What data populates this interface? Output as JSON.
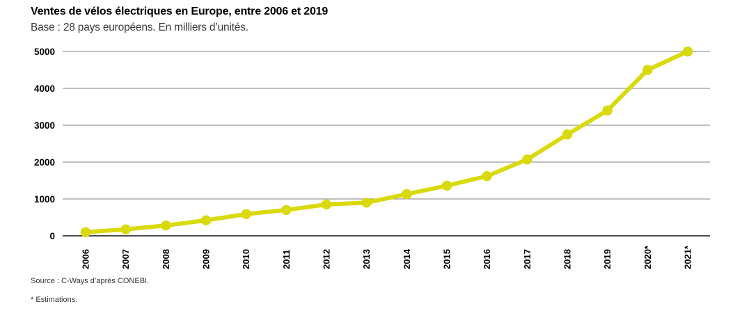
{
  "header": {
    "title": "Ventes de vélos électriques en Europe, entre 2006 et 2019",
    "subtitle": "Base : 28 pays européens. En milliers d’unités."
  },
  "footer": {
    "source": "Source : C-Ways d’après CONEBI.",
    "note": "* Estimations."
  },
  "colors": {
    "line": "#d9d90b",
    "marker": "#d9d90b",
    "grid": "#7f7f7f",
    "zero_axis": "#111111",
    "tick_text": "#000000"
  },
  "chart_data": {
    "type": "line",
    "title": "Ventes de vélos électriques en Europe, entre 2006 et 2019",
    "subtitle": "Base : 28 pays européens. En milliers d’unités.",
    "xlabel": "",
    "ylabel": "En milliers d’unités",
    "categories": [
      "2006",
      "2007",
      "2008",
      "2009",
      "2010",
      "2011",
      "2012",
      "2013",
      "2014",
      "2015",
      "2016",
      "2017",
      "2018",
      "2019",
      "2020*",
      "2021*"
    ],
    "series": [
      {
        "name": "Ventes de vélos électriques (milliers d’unités)",
        "values": [
          100,
          175,
          280,
          420,
          590,
          700,
          850,
          900,
          1130,
          1360,
          1620,
          2070,
          2750,
          3400,
          4500,
          5000
        ]
      }
    ],
    "estimated_categories": [
      "2020*",
      "2021*"
    ],
    "ylim": [
      0,
      5000
    ],
    "yticks": [
      0,
      1000,
      2000,
      3000,
      4000,
      5000
    ],
    "grid": true,
    "legend": "none",
    "x_tick_rotation": -90
  }
}
